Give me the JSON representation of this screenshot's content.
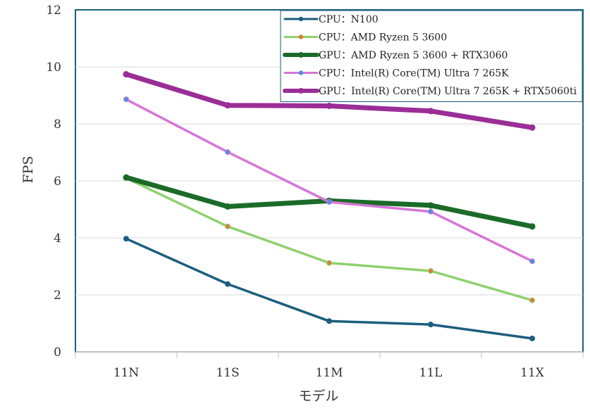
{
  "chart_data": {
    "type": "line",
    "categories": [
      "11N",
      "11S",
      "11M",
      "11L",
      "11X"
    ],
    "xlabel": "モデル",
    "ylabel": "FPS",
    "ylim": [
      0,
      12
    ],
    "yticks": [
      "0",
      "2",
      "4",
      "6",
      "8",
      "10",
      "12"
    ],
    "grid": true,
    "legend_position": "top-right",
    "series": [
      {
        "name": "CPU：N100",
        "color": "#1b5e7e",
        "marker_color": "#1b5e7e",
        "weight": "thin",
        "values": [
          3.97,
          2.38,
          1.08,
          0.96,
          0.47
        ]
      },
      {
        "name": "CPU：AMD Ryzen 5 3600",
        "color": "#8fd16f",
        "marker_color": "#e07b39",
        "weight": "thin",
        "values": [
          6.1,
          4.4,
          3.12,
          2.84,
          1.81
        ]
      },
      {
        "name": "GPU：AMD Ryzen 5 3600 + RTX3060",
        "color": "#1b6b28",
        "marker_color": "#1b6b28",
        "weight": "thick",
        "values": [
          6.12,
          5.1,
          5.3,
          5.14,
          4.4
        ]
      },
      {
        "name": "CPU：Intel(R) Core(TM) Ultra 7 265K",
        "color": "#d676d6",
        "marker_color": "#4a90e2",
        "weight": "thin",
        "values": [
          8.86,
          7.01,
          5.26,
          4.92,
          3.18
        ]
      },
      {
        "name": "GPU：Intel(R) Core(TM) Ultra 7 265K + RTX5060ti",
        "color": "#9b2d96",
        "marker_color": "#9b2d96",
        "weight": "thick",
        "values": [
          9.74,
          8.65,
          8.63,
          8.45,
          7.87
        ]
      }
    ]
  }
}
